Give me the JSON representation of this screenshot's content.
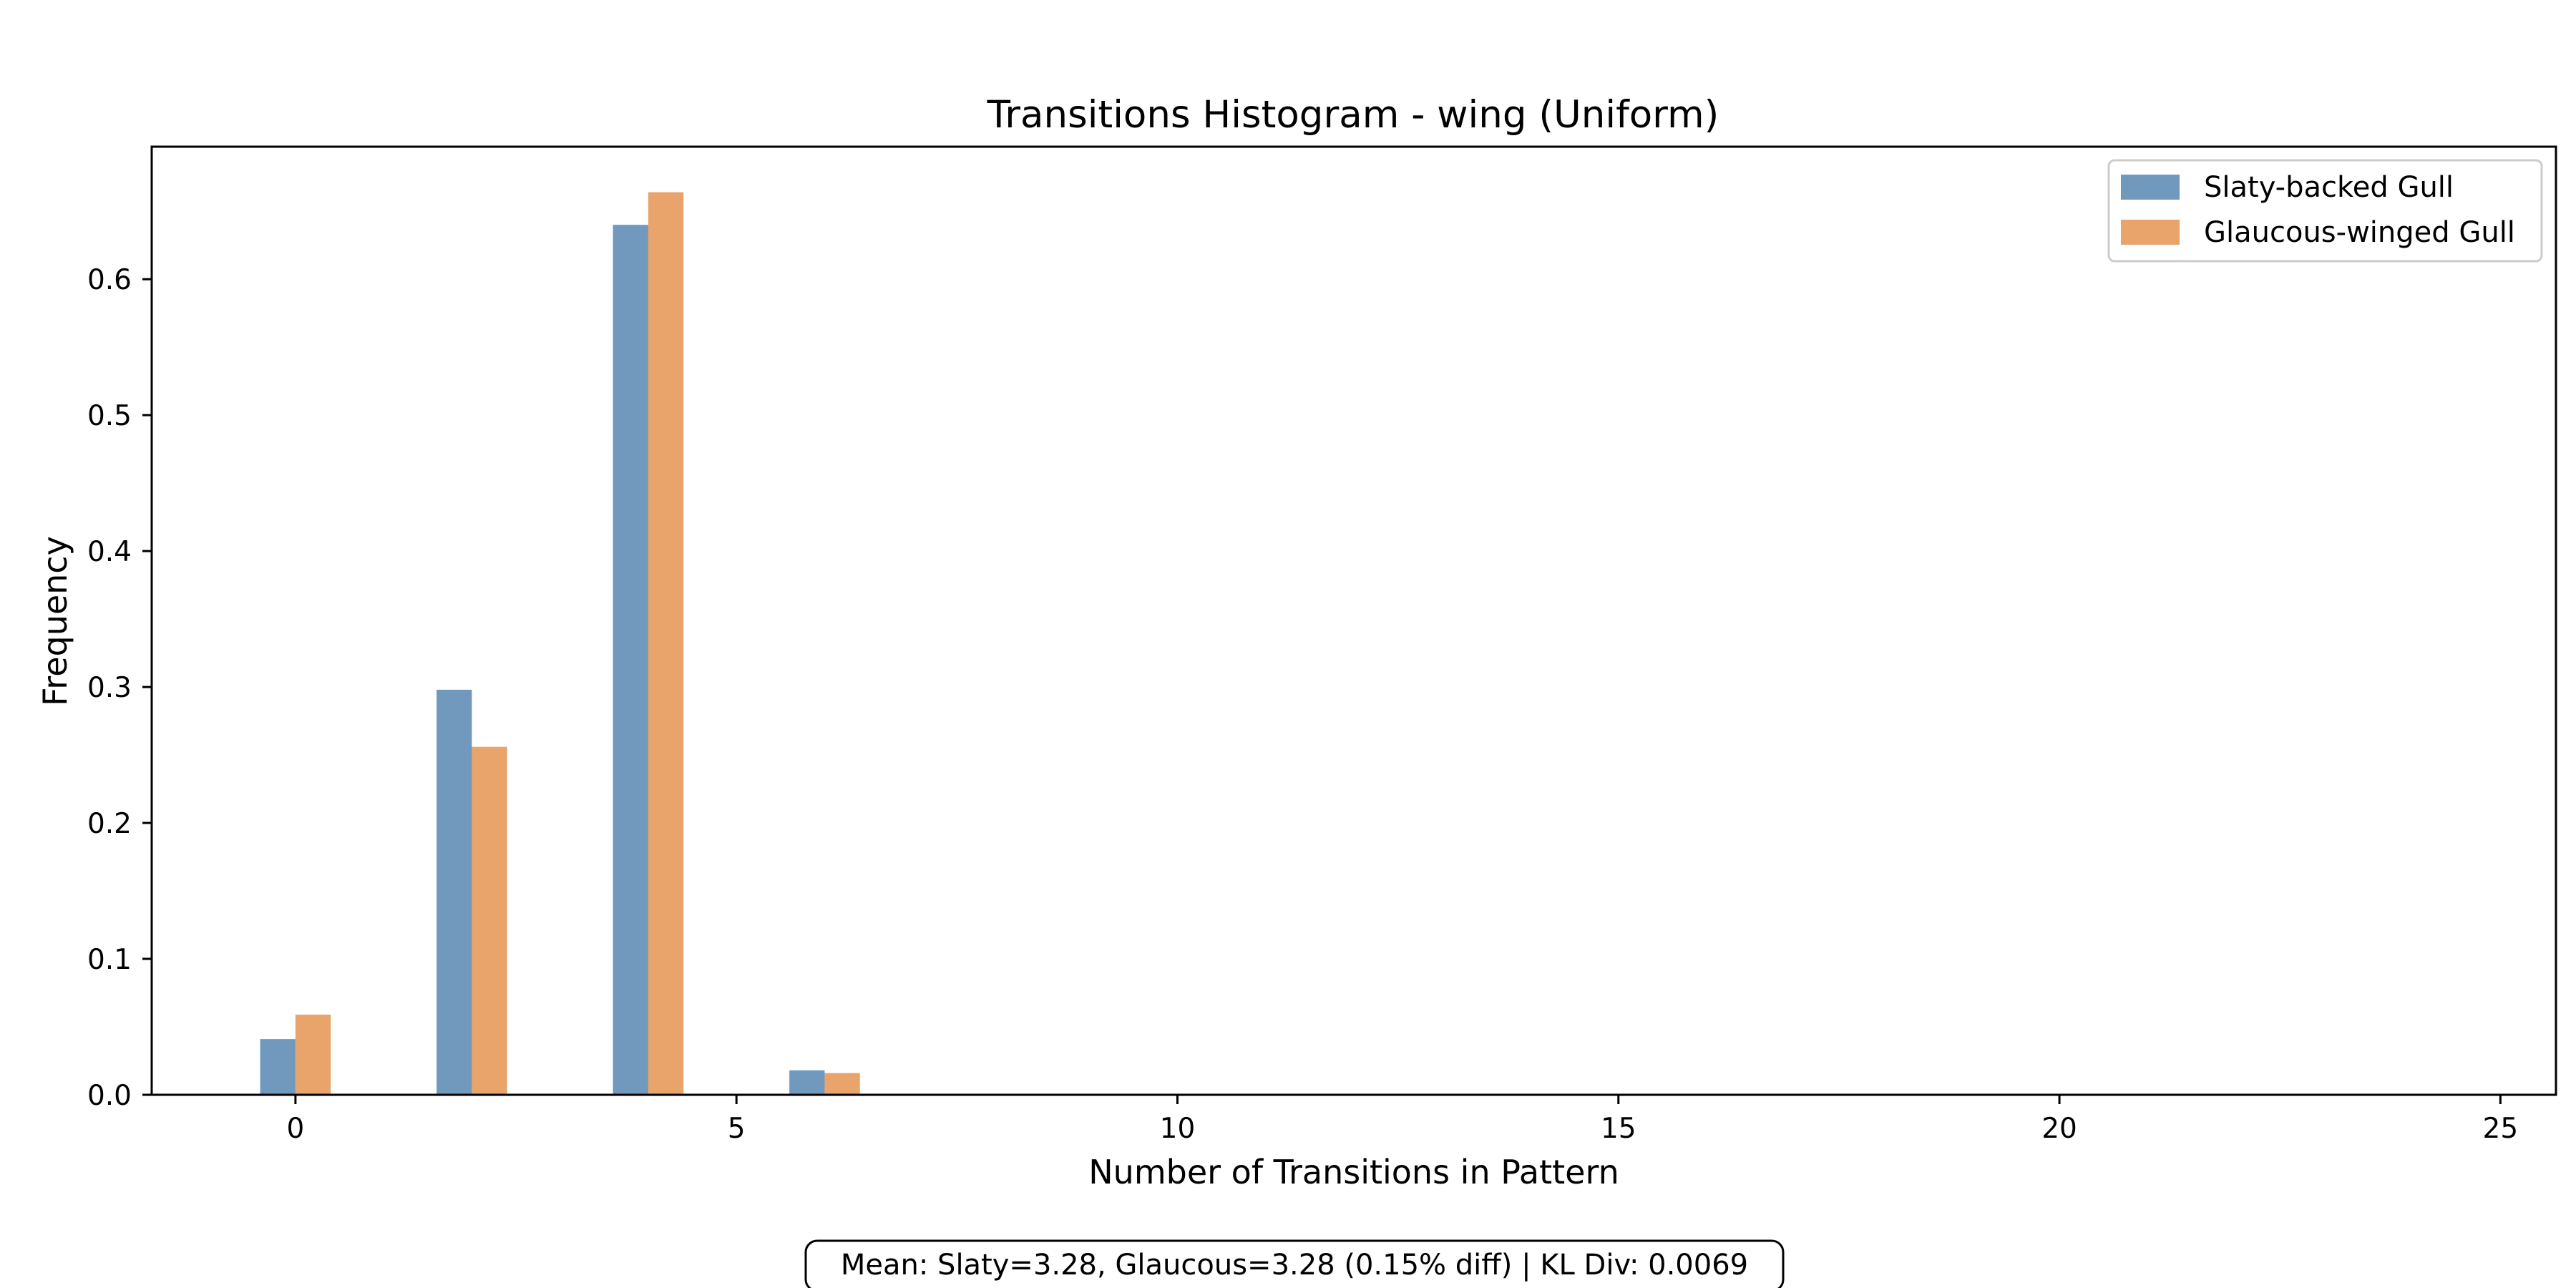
{
  "chart_data": {
    "type": "bar",
    "title": "Transitions Histogram - wing (Uniform)",
    "xlabel": "Number of Transitions in Pattern",
    "ylabel": "Frequency",
    "xlim": [
      -1.63,
      25.63
    ],
    "ylim": [
      0,
      0.6975
    ],
    "xticks": [
      0,
      5,
      10,
      15,
      20,
      25
    ],
    "xtick_labels": [
      "0",
      "5",
      "10",
      "15",
      "20",
      "25"
    ],
    "yticks": [
      0.0,
      0.1,
      0.2,
      0.3,
      0.4,
      0.5,
      0.6
    ],
    "ytick_labels": [
      "0.0",
      "0.1",
      "0.2",
      "0.3",
      "0.4",
      "0.5",
      "0.6"
    ],
    "grid": false,
    "legend_position": "top-right",
    "x": [
      0,
      2,
      4,
      6
    ],
    "series": [
      {
        "name": "Slaty-backed Gull",
        "color": "#7099bd",
        "values": [
          0.041,
          0.298,
          0.64,
          0.018
        ]
      },
      {
        "name": "Glaucous-winged Gull",
        "color": "#e8a46a",
        "values": [
          0.059,
          0.256,
          0.664,
          0.016
        ]
      }
    ],
    "annotation": "Mean: Slaty=3.28, Glaucous=3.28 (0.15% diff) | KL Div: 0.0069"
  }
}
